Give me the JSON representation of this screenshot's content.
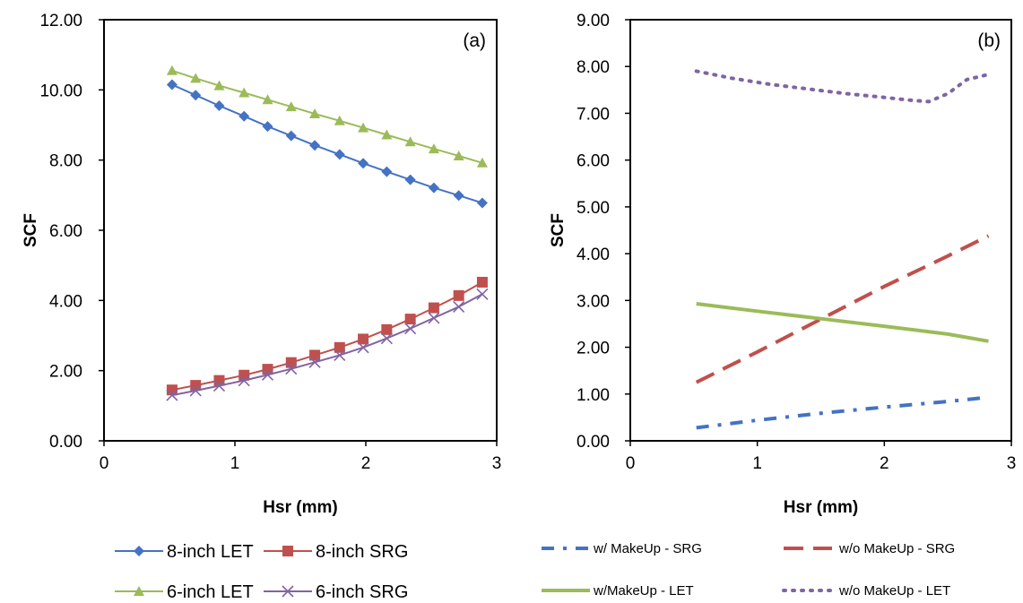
{
  "chart_data": [
    {
      "type": "line",
      "panel_label": "(a)",
      "xlabel": "Hsr (mm)",
      "ylabel": "SCF",
      "xlim": [
        0,
        3
      ],
      "ylim": [
        0,
        12
      ],
      "x_ticks": [
        "0",
        "1",
        "2",
        "3"
      ],
      "y_ticks": [
        "0.00",
        "2.00",
        "4.00",
        "6.00",
        "8.00",
        "10.00",
        "12.00"
      ],
      "grid": false,
      "legend_position": "bottom",
      "series": [
        {
          "name": "8-inch LET",
          "color": "#4472C4",
          "marker": "diamond",
          "x": [
            0.52,
            0.7,
            0.88,
            1.07,
            1.25,
            1.43,
            1.61,
            1.8,
            1.98,
            2.16,
            2.34,
            2.52,
            2.71,
            2.89
          ],
          "y": [
            10.15,
            9.85,
            9.55,
            9.25,
            8.96,
            8.69,
            8.42,
            8.16,
            7.91,
            7.67,
            7.44,
            7.21,
            6.99,
            6.78
          ]
        },
        {
          "name": "8-inch SRG",
          "color": "#C0504D",
          "marker": "square",
          "x": [
            0.52,
            0.7,
            0.88,
            1.07,
            1.25,
            1.43,
            1.61,
            1.8,
            1.98,
            2.16,
            2.34,
            2.52,
            2.71,
            2.89
          ],
          "y": [
            1.45,
            1.58,
            1.72,
            1.87,
            2.04,
            2.23,
            2.44,
            2.66,
            2.9,
            3.17,
            3.47,
            3.79,
            4.14,
            4.52
          ]
        },
        {
          "name": "6-inch LET",
          "color": "#9BBB59",
          "marker": "triangle",
          "x": [
            0.52,
            0.7,
            0.88,
            1.07,
            1.25,
            1.43,
            1.61,
            1.8,
            1.98,
            2.16,
            2.34,
            2.52,
            2.71,
            2.89
          ],
          "y": [
            10.55,
            10.33,
            10.12,
            9.92,
            9.72,
            9.52,
            9.32,
            9.12,
            8.92,
            8.72,
            8.52,
            8.32,
            8.12,
            7.92
          ]
        },
        {
          "name": "6-inch SRG",
          "color": "#8064A2",
          "marker": "x",
          "x": [
            0.52,
            0.7,
            0.88,
            1.07,
            1.25,
            1.43,
            1.61,
            1.8,
            1.98,
            2.16,
            2.34,
            2.52,
            2.71,
            2.89
          ],
          "y": [
            1.3,
            1.43,
            1.57,
            1.72,
            1.88,
            2.05,
            2.24,
            2.44,
            2.66,
            2.92,
            3.2,
            3.5,
            3.82,
            4.18
          ]
        }
      ]
    },
    {
      "type": "line",
      "panel_label": "(b)",
      "xlabel": "Hsr (mm)",
      "ylabel": "SCF",
      "xlim": [
        0,
        3
      ],
      "ylim": [
        0,
        9
      ],
      "x_ticks": [
        "0",
        "1",
        "2",
        "3"
      ],
      "y_ticks": [
        "0.00",
        "1.00",
        "2.00",
        "3.00",
        "4.00",
        "5.00",
        "6.00",
        "7.00",
        "8.00",
        "9.00"
      ],
      "grid": false,
      "legend_position": "bottom",
      "series": [
        {
          "name": "w/ MakeUp - SRG",
          "color": "#4472C4",
          "style": "dash-dot",
          "x": [
            0.52,
            1.0,
            1.5,
            2.0,
            2.5,
            2.82
          ],
          "y": [
            0.28,
            0.44,
            0.59,
            0.72,
            0.84,
            0.93
          ]
        },
        {
          "name": "w/o MakeUp - SRG",
          "color": "#C0504D",
          "style": "dash",
          "x": [
            0.52,
            1.0,
            1.5,
            2.0,
            2.5,
            2.82
          ],
          "y": [
            1.25,
            1.9,
            2.6,
            3.3,
            3.95,
            4.38
          ]
        },
        {
          "name": "w/MakeUp - LET",
          "color": "#9BBB59",
          "style": "solid",
          "x": [
            0.52,
            1.0,
            1.5,
            2.0,
            2.5,
            2.82
          ],
          "y": [
            2.93,
            2.77,
            2.61,
            2.45,
            2.28,
            2.13
          ]
        },
        {
          "name": "w/o MakeUp - LET",
          "color": "#8064A2",
          "style": "dot",
          "x": [
            0.52,
            0.8,
            1.1,
            1.4,
            1.7,
            2.0,
            2.2,
            2.35,
            2.5,
            2.65,
            2.82
          ],
          "y": [
            7.9,
            7.75,
            7.62,
            7.52,
            7.42,
            7.34,
            7.28,
            7.25,
            7.42,
            7.72,
            7.83
          ]
        }
      ]
    }
  ]
}
